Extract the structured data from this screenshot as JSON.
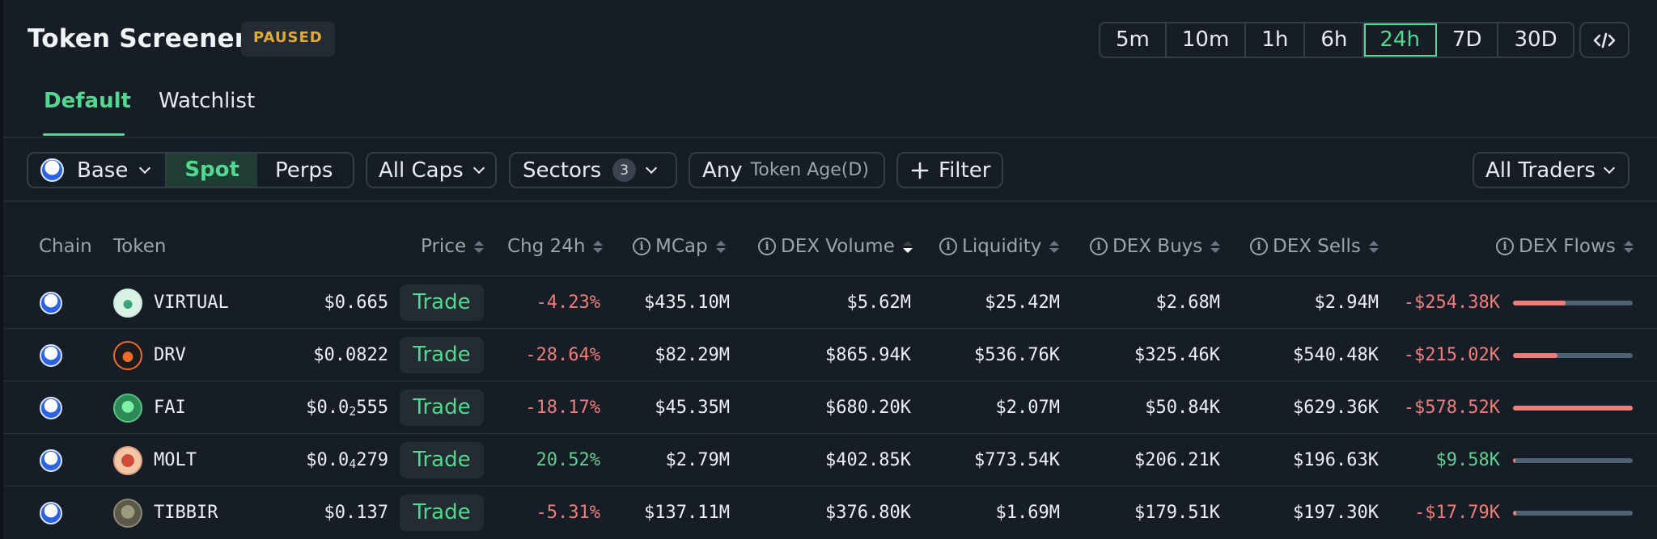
{
  "header": {
    "title": "Token Screener",
    "status_badge": "PAUSED"
  },
  "timeframes": {
    "options": [
      "5m",
      "10m",
      "1h",
      "6h",
      "24h",
      "7D",
      "30D"
    ],
    "selected": "24h"
  },
  "tabs": [
    {
      "label": "Default",
      "active": true
    },
    {
      "label": "Watchlist",
      "active": false
    }
  ],
  "filters": {
    "chain": "Base",
    "market_type": {
      "spot": "Spot",
      "perps": "Perps",
      "selected": "Spot"
    },
    "caps": "All Caps",
    "sectors": {
      "label": "Sectors",
      "count": "3"
    },
    "token_age": {
      "value": "Any",
      "label": "Token Age(D)"
    },
    "add_filter": "Filter",
    "traders": "All Traders"
  },
  "columns": {
    "chain": "Chain",
    "token": "Token",
    "price": "Price",
    "chg": "Chg 24h",
    "mcap": "MCap",
    "dex_volume": "DEX Volume",
    "liquidity": "Liquidity",
    "dex_buys": "DEX Buys",
    "dex_sells": "DEX Sells",
    "dex_flows": "DEX Flows"
  },
  "trade_label": "Trade",
  "rows": [
    {
      "token": "VIRTUAL",
      "price": "$0.665",
      "price_sub": "",
      "price_tail": "",
      "chg": "-4.23%",
      "mcap": "$435.10M",
      "dex_volume": "$5.62M",
      "liquidity": "$25.42M",
      "dex_buys": "$2.68M",
      "dex_sells": "$2.94M",
      "dex_flows": "-$254.38K",
      "flow_fraction": 0.44
    },
    {
      "token": "DRV",
      "price": "$0.0822",
      "price_sub": "",
      "price_tail": "",
      "chg": "-28.64%",
      "mcap": "$82.29M",
      "dex_volume": "$865.94K",
      "liquidity": "$536.76K",
      "dex_buys": "$325.46K",
      "dex_sells": "$540.48K",
      "dex_flows": "-$215.02K",
      "flow_fraction": 0.37
    },
    {
      "token": "FAI",
      "price": "$0.0",
      "price_sub": "2",
      "price_tail": "555",
      "chg": "-18.17%",
      "mcap": "$45.35M",
      "dex_volume": "$680.20K",
      "liquidity": "$2.07M",
      "dex_buys": "$50.84K",
      "dex_sells": "$629.36K",
      "dex_flows": "-$578.52K",
      "flow_fraction": 1.0
    },
    {
      "token": "MOLT",
      "price": "$0.0",
      "price_sub": "4",
      "price_tail": "279",
      "chg": "20.52%",
      "mcap": "$2.79M",
      "dex_volume": "$402.85K",
      "liquidity": "$773.54K",
      "dex_buys": "$206.21K",
      "dex_sells": "$196.63K",
      "dex_flows": "$9.58K",
      "flow_fraction": 0.02
    },
    {
      "token": "TIBBIR",
      "price": "$0.137",
      "price_sub": "",
      "price_tail": "",
      "chg": "-5.31%",
      "mcap": "$137.11M",
      "dex_volume": "$376.80K",
      "liquidity": "$1.69M",
      "dex_buys": "$179.51K",
      "dex_sells": "$197.30K",
      "dex_flows": "-$17.79K",
      "flow_fraction": 0.03
    }
  ],
  "colors": {
    "accent_green": "#52d98f",
    "negative_red": "#f07d78",
    "paused_amber": "#e2a93b",
    "background": "#171d26"
  }
}
